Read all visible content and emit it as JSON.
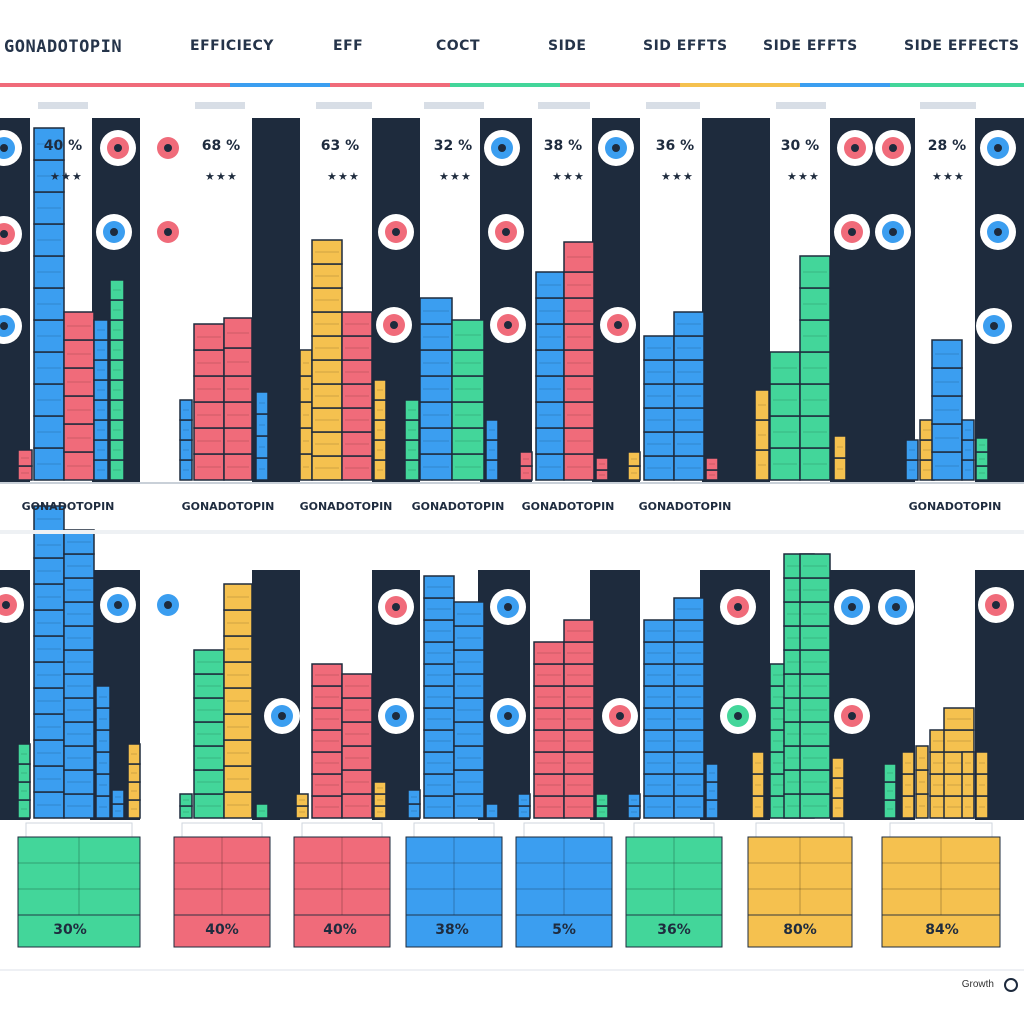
{
  "header": {
    "brand": "GONADOTOPIN",
    "columns": [
      "EFFICIECY",
      "EFF",
      "COCT",
      "SIDE",
      "SID EFFTS",
      "SIDE EFFTS",
      "SIDE EFFECTS"
    ]
  },
  "colors": {
    "dark": "#1e2b3d",
    "blue": "#3b9ef0",
    "pink": "#f06b7a",
    "green": "#43d69a",
    "yellow": "#f5c14f",
    "navy": "#25344a"
  },
  "chart_data": [
    {
      "type": "bar",
      "panel": "top",
      "percent_labels": [
        "40 %",
        "68 %",
        "63 %",
        "32 %",
        "38 %",
        "36 %",
        "30 %",
        "28 %"
      ],
      "group_labels": [
        "GONADOTOPIN",
        "GONADOTOPIN",
        "GONADOTOPIN",
        "GONADOTOPIN",
        "GONADOTOPIN",
        "GONADOTOPIN",
        "GONADOTOPIN"
      ]
    },
    {
      "type": "bar",
      "panel": "bottom",
      "percent_labels": [
        "30%",
        "40%",
        "40%",
        "38%",
        "5%",
        "36%",
        "80%",
        "84%"
      ]
    }
  ],
  "footer": {
    "credit": "Growth"
  }
}
